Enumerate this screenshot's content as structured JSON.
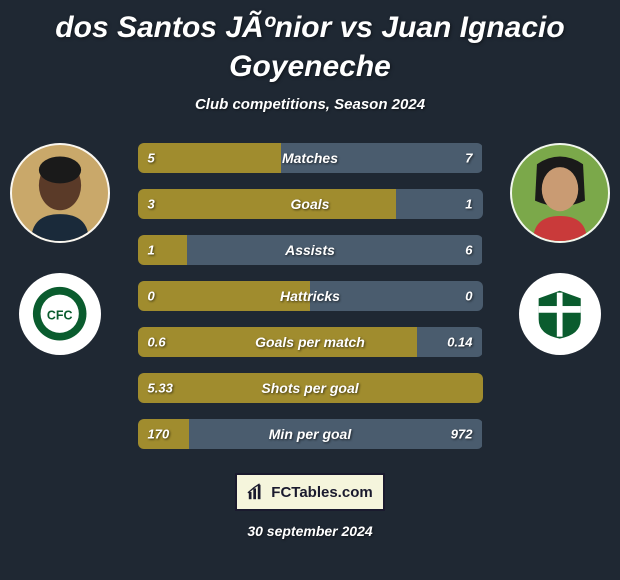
{
  "background_color": "#1f2833",
  "title_color": "#ffffff",
  "subtitle_color": "#ffffff",
  "bar_label_color": "#ffffff",
  "value_color": "#ffffff",
  "date_color": "#ffffff",
  "logo_box_bg": "#f5f5dc",
  "logo_box_text_color": "#1a1a2e",
  "avatar_border_color": "rgba(255,255,255,0.9)",
  "title": "dos Santos JÃºnior vs Juan Ignacio Goyeneche",
  "subtitle": "Club competitions, Season 2024",
  "date": "30 september 2024",
  "logo_text": "FCTables.com",
  "player_left": {
    "avatar_bg": "#c9a86a",
    "skin": "#5a3a28",
    "crest_bg": "#ffffff",
    "crest_ring": "#0a5c2e",
    "crest_inner": "#ffffff",
    "crest_text": "CFC"
  },
  "player_right": {
    "avatar_bg": "#7ba84a",
    "skin": "#c99b73",
    "hair": "#1a1a1a",
    "crest_bg": "#ffffff",
    "crest_shield": "#0a5c2e",
    "crest_stripe": "#ffffff"
  },
  "bar_colors": {
    "left": "#a08c2e",
    "right": "#4a5c6e"
  },
  "stats": [
    {
      "label": "Matches",
      "left_val": "5",
      "right_val": "7",
      "left_pct": 41.7
    },
    {
      "label": "Goals",
      "left_val": "3",
      "right_val": "1",
      "left_pct": 75.0
    },
    {
      "label": "Assists",
      "left_val": "1",
      "right_val": "6",
      "left_pct": 14.3
    },
    {
      "label": "Hattricks",
      "left_val": "0",
      "right_val": "0",
      "left_pct": 50.0
    },
    {
      "label": "Goals per match",
      "left_val": "0.6",
      "right_val": "0.14",
      "left_pct": 81.1
    },
    {
      "label": "Shots per goal",
      "left_val": "5.33",
      "right_val": "",
      "left_pct": 100.0
    },
    {
      "label": "Min per goal",
      "left_val": "170",
      "right_val": "972",
      "left_pct": 14.9
    }
  ]
}
